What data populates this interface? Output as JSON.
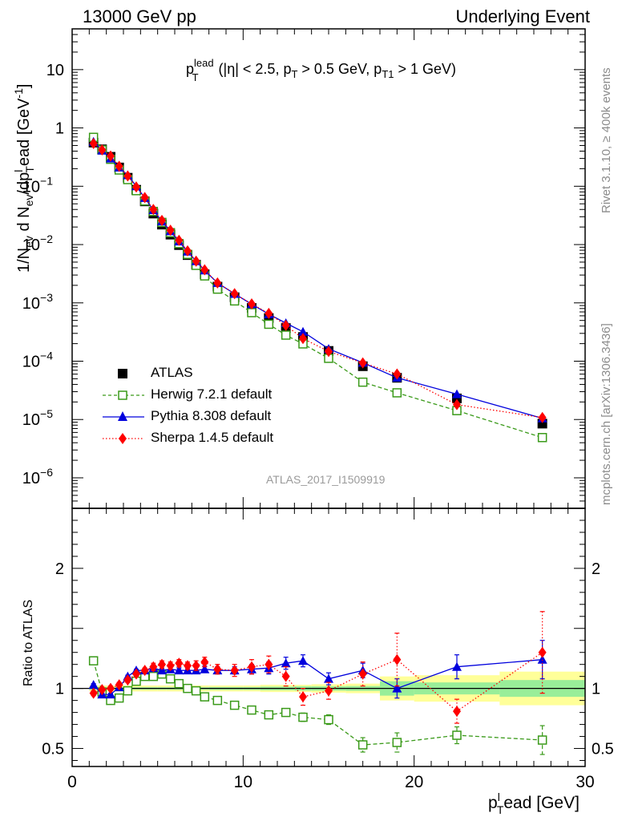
{
  "header": {
    "left": "13000 GeV pp",
    "right": "Underlying Event"
  },
  "side_labels": {
    "rivet": "Rivet 3.1.10, ≥ 400k events",
    "mcplots": "mcplots.cern.ch [arXiv:1306.3436]"
  },
  "reference_label": "ATLAS_2017_I1509919",
  "legend": [
    {
      "name": "ATLAS",
      "color": "#000000",
      "marker": "square-filled",
      "line": "none"
    },
    {
      "name": "Herwig 7.2.1 default",
      "color": "#3a9a19",
      "marker": "square-open",
      "line": "dashed"
    },
    {
      "name": "Pythia 8.308 default",
      "color": "#0000dd",
      "marker": "triangle",
      "line": "solid"
    },
    {
      "name": "Sherpa 1.4.5 default",
      "color": "#ff0000",
      "marker": "diamond",
      "line": "dotted"
    }
  ],
  "chart_data": [
    {
      "type": "scatter",
      "panel": "main",
      "title": "p_T^lead (|η| < 2.5, p_T > 0.5 GeV, p_T1 > 1 GeV)",
      "title_parts": {
        "p": "p",
        "sup_lead": "lead",
        "sub_T": "T",
        "cond1": " (|η| < 2.5, p",
        "sub_T2": "T",
        "cond2": " > 0.5 GeV, p",
        "sub_T1": "T1",
        "cond3": " > 1 GeV)"
      },
      "ylabel_parts": {
        "a": "1/N",
        "a_sub": "ev",
        "b": " d N",
        "b_sub": "ev",
        "c": "/dp",
        "c_sub": "T",
        "c_sup": "l",
        "d": "ead [GeV",
        "d_sup": "-1",
        "e": "]"
      },
      "yscale": "log",
      "xlim": [
        0,
        30
      ],
      "ylim": [
        3e-07,
        50
      ],
      "y_tick_labels": [
        {
          "value": 10,
          "base": "10",
          "exp": ""
        },
        {
          "value": 1,
          "base": "1",
          "exp": ""
        },
        {
          "value": 0.1,
          "base": "10",
          "exp": "−1"
        },
        {
          "value": 0.01,
          "base": "10",
          "exp": "−2"
        },
        {
          "value": 0.001,
          "base": "10",
          "exp": "−3"
        },
        {
          "value": 0.0001,
          "base": "10",
          "exp": "−4"
        },
        {
          "value": 1e-05,
          "base": "10",
          "exp": "−5"
        },
        {
          "value": 1e-06,
          "base": "10",
          "exp": "−6"
        }
      ],
      "x": [
        1.25,
        1.75,
        2.25,
        2.75,
        3.25,
        3.75,
        4.25,
        4.75,
        5.25,
        5.75,
        6.25,
        6.75,
        7.25,
        7.75,
        8.5,
        9.5,
        10.5,
        11.5,
        12.5,
        13.5,
        15.0,
        17.0,
        19.0,
        22.5,
        27.5
      ],
      "series": [
        {
          "name": "ATLAS",
          "values": [
            0.56,
            0.43,
            0.32,
            0.21,
            0.14,
            0.087,
            0.055,
            0.034,
            0.022,
            0.0148,
            0.0098,
            0.0066,
            0.0045,
            0.0031,
            0.0019,
            0.00125,
            0.00082,
            0.00055,
            0.00037,
            0.00026,
            0.00015,
            8.2e-05,
            5.2e-05,
            2.3e-05,
            8.5e-06
          ]
        },
        {
          "name": "Herwig 7.2.1 default",
          "values": [
            0.69,
            0.42,
            0.29,
            0.19,
            0.13,
            0.084,
            0.056,
            0.037,
            0.024,
            0.016,
            0.0104,
            0.0068,
            0.0044,
            0.0029,
            0.00172,
            0.00108,
            0.00068,
            0.00043,
            0.00028,
            0.000198,
            0.000112,
            4.37e-05,
            2.87e-05,
            1.42e-05,
            4.9e-06
          ]
        },
        {
          "name": "Pythia 8.308 default",
          "values": [
            0.58,
            0.41,
            0.3,
            0.21,
            0.155,
            0.1,
            0.063,
            0.039,
            0.025,
            0.017,
            0.0113,
            0.0076,
            0.0052,
            0.0036,
            0.0022,
            0.00143,
            0.00095,
            0.00064,
            0.00045,
            0.00032,
            0.000163,
            9.43e-05,
            5.2e-05,
            2.72e-05,
            1.05e-05
          ]
        },
        {
          "name": "Sherpa 1.4.5 default",
          "values": [
            0.54,
            0.42,
            0.33,
            0.22,
            0.15,
            0.097,
            0.064,
            0.04,
            0.026,
            0.0176,
            0.0118,
            0.0078,
            0.0052,
            0.0037,
            0.0022,
            0.00144,
            0.00096,
            0.00066,
            0.00041,
            0.000245,
            0.000147,
            9.34e-05,
            6.03e-05,
            1.8e-05,
            1.08e-05
          ]
        }
      ]
    },
    {
      "type": "scatter",
      "panel": "ratio",
      "ylabel": "Ratio to ATLAS",
      "xlabel_parts": {
        "p": "p",
        "sub": "T",
        "sup": "l",
        "rest": "ead [GeV]"
      },
      "xlim": [
        0,
        30
      ],
      "ylim": [
        0.35,
        2.5
      ],
      "x_tick_labels": [
        "0",
        "10",
        "20",
        "30"
      ],
      "x_ticks": [
        0,
        10,
        20,
        30
      ],
      "y_tick_labels": [
        "0.5",
        "1",
        "2"
      ],
      "y_ticks": [
        0.5,
        1,
        2
      ],
      "x": [
        1.25,
        1.75,
        2.25,
        2.75,
        3.25,
        3.75,
        4.25,
        4.75,
        5.25,
        5.75,
        6.25,
        6.75,
        7.25,
        7.75,
        8.5,
        9.5,
        10.5,
        11.5,
        12.5,
        13.5,
        15.0,
        17.0,
        19.0,
        22.5,
        27.5
      ],
      "x_bin_edges": [
        1.0,
        1.5,
        2.0,
        2.5,
        3.0,
        3.5,
        4.0,
        4.5,
        5.0,
        5.5,
        6.0,
        6.5,
        7.0,
        7.5,
        8.0,
        9.0,
        10.0,
        11.0,
        12.0,
        13.0,
        14.0,
        16.0,
        18.0,
        20.0,
        25.0,
        30.0
      ],
      "band_inner": [
        0.01,
        0.01,
        0.01,
        0.01,
        0.01,
        0.01,
        0.01,
        0.01,
        0.01,
        0.01,
        0.01,
        0.01,
        0.01,
        0.01,
        0.012,
        0.012,
        0.012,
        0.015,
        0.015,
        0.018,
        0.018,
        0.02,
        0.06,
        0.05,
        0.07
      ],
      "band_outer": [
        0.025,
        0.025,
        0.025,
        0.025,
        0.025,
        0.025,
        0.025,
        0.025,
        0.025,
        0.025,
        0.025,
        0.025,
        0.025,
        0.025,
        0.025,
        0.025,
        0.025,
        0.03,
        0.03,
        0.03,
        0.035,
        0.04,
        0.1,
        0.11,
        0.14
      ],
      "series": [
        {
          "name": "Herwig 7.2.1 default",
          "values": [
            1.23,
            0.97,
            0.9,
            0.92,
            0.98,
            1.06,
            1.1,
            1.1,
            1.12,
            1.08,
            1.04,
            1.0,
            0.98,
            0.93,
            0.9,
            0.86,
            0.82,
            0.78,
            0.8,
            0.76,
            0.74,
            0.53,
            0.55,
            0.61,
            0.57
          ],
          "errors": [
            0.01,
            0.01,
            0.01,
            0.01,
            0.01,
            0.01,
            0.01,
            0.01,
            0.01,
            0.01,
            0.01,
            0.01,
            0.01,
            0.01,
            0.01,
            0.01,
            0.015,
            0.02,
            0.03,
            0.035,
            0.04,
            0.06,
            0.08,
            0.07,
            0.12
          ]
        },
        {
          "name": "Pythia 8.308 default",
          "values": [
            1.03,
            0.95,
            0.95,
            1.01,
            1.1,
            1.15,
            1.15,
            1.17,
            1.15,
            1.16,
            1.15,
            1.15,
            1.15,
            1.16,
            1.15,
            1.15,
            1.16,
            1.17,
            1.21,
            1.23,
            1.08,
            1.15,
            1.0,
            1.18,
            1.24
          ],
          "errors": [
            0.01,
            0.01,
            0.01,
            0.01,
            0.01,
            0.01,
            0.01,
            0.015,
            0.015,
            0.02,
            0.02,
            0.02,
            0.025,
            0.025,
            0.03,
            0.03,
            0.04,
            0.05,
            0.05,
            0.05,
            0.05,
            0.06,
            0.08,
            0.1,
            0.16
          ]
        },
        {
          "name": "Sherpa 1.4.5 default",
          "values": [
            0.96,
            0.99,
            1.0,
            1.03,
            1.07,
            1.12,
            1.15,
            1.18,
            1.2,
            1.19,
            1.21,
            1.19,
            1.19,
            1.22,
            1.16,
            1.15,
            1.18,
            1.2,
            1.1,
            0.93,
            0.98,
            1.12,
            1.24,
            0.81,
            1.3
          ],
          "errors": [
            0.02,
            0.02,
            0.02,
            0.02,
            0.02,
            0.02,
            0.02,
            0.03,
            0.03,
            0.03,
            0.03,
            0.03,
            0.04,
            0.04,
            0.04,
            0.05,
            0.06,
            0.07,
            0.08,
            0.07,
            0.07,
            0.1,
            0.22,
            0.1,
            0.34
          ]
        }
      ]
    }
  ]
}
